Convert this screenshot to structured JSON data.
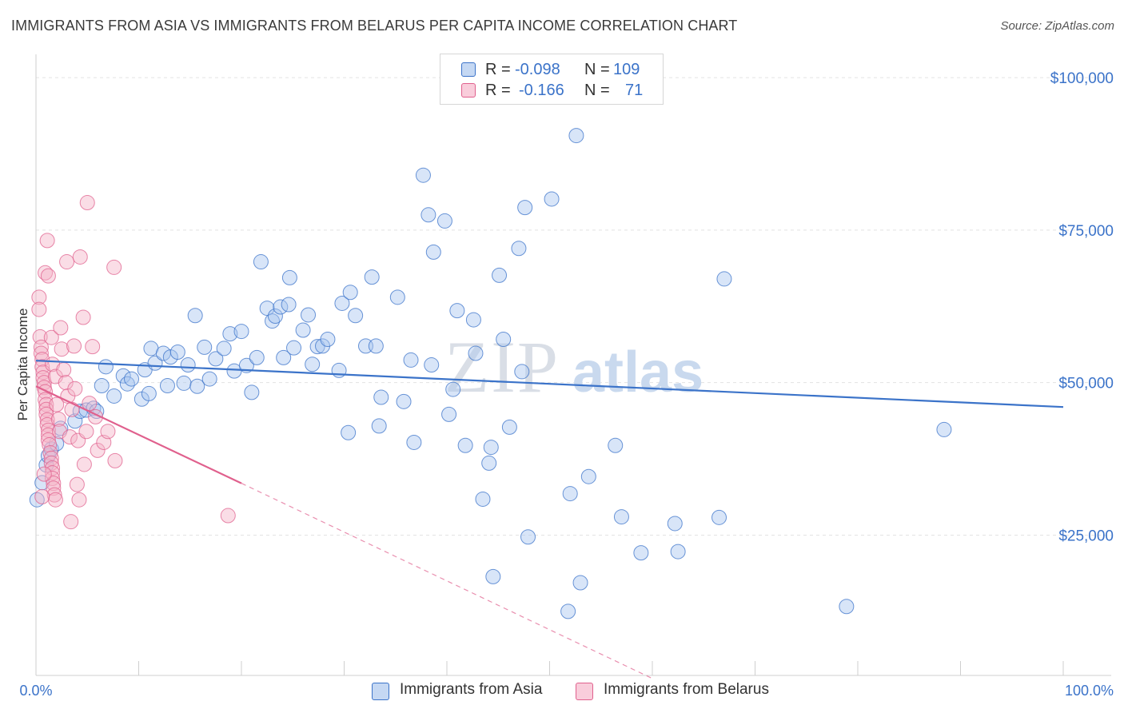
{
  "title": "IMMIGRANTS FROM ASIA VS IMMIGRANTS FROM BELARUS PER CAPITA INCOME CORRELATION CHART",
  "source": "Source: ZipAtlas.com",
  "watermark": {
    "zip": "ZIP",
    "atlas": "atlas"
  },
  "legend": {
    "rows": [
      {
        "r_label": "R =",
        "r_value": "-0.098",
        "n_label": "N =",
        "n_value": "109",
        "color": "#a9c6ef"
      },
      {
        "r_label": "R =",
        "r_value": "-0.166",
        "n_label": "N =",
        "n_value": "71",
        "color": "#f5b3c7"
      }
    ]
  },
  "bottom_legend": [
    "Immigrants from Asia",
    "Immigrants from Belarus"
  ],
  "chart_data": {
    "type": "scatter",
    "title": "IMMIGRANTS FROM ASIA VS IMMIGRANTS FROM BELARUS PER CAPITA INCOME CORRELATION CHART",
    "xlabel": "",
    "ylabel": "Per Capita Income",
    "x_tick_labels": [
      "0.0%",
      "100.0%"
    ],
    "y_tick_labels": [
      "$25,000",
      "$50,000",
      "$75,000",
      "$100,000"
    ],
    "y_ticks": [
      25000,
      50000,
      75000,
      100000
    ],
    "xlim": [
      0,
      100
    ],
    "ylim": [
      2000,
      102500
    ],
    "grid": true,
    "series": [
      {
        "name": "Immigrants from Asia",
        "color": "#3b73c9",
        "fill": "#a9c6ef",
        "R": -0.098,
        "N": 109,
        "trend": {
          "x": [
            0,
            100
          ],
          "y": [
            53600,
            46000
          ],
          "style": "solid"
        },
        "points": [
          [
            0.1,
            30800
          ],
          [
            0.6,
            33600
          ],
          [
            1.0,
            36500
          ],
          [
            1.2,
            38000
          ],
          [
            1.5,
            39100
          ],
          [
            2.0,
            40000
          ],
          [
            2.4,
            42500
          ],
          [
            3.8,
            43700
          ],
          [
            4.3,
            45300
          ],
          [
            4.9,
            45500
          ],
          [
            5.6,
            45800
          ],
          [
            5.9,
            45300
          ],
          [
            6.4,
            49500
          ],
          [
            6.8,
            52600
          ],
          [
            7.6,
            47800
          ],
          [
            8.5,
            51100
          ],
          [
            8.9,
            49800
          ],
          [
            9.3,
            50600
          ],
          [
            10.3,
            47300
          ],
          [
            10.6,
            52100
          ],
          [
            11.0,
            48200
          ],
          [
            11.2,
            55600
          ],
          [
            11.6,
            53200
          ],
          [
            12.4,
            54800
          ],
          [
            12.8,
            49500
          ],
          [
            13.1,
            54200
          ],
          [
            13.8,
            55000
          ],
          [
            14.4,
            49900
          ],
          [
            14.8,
            52900
          ],
          [
            15.5,
            61000
          ],
          [
            15.7,
            49400
          ],
          [
            16.4,
            55800
          ],
          [
            16.9,
            50600
          ],
          [
            17.5,
            53900
          ],
          [
            18.3,
            55600
          ],
          [
            18.9,
            58000
          ],
          [
            19.3,
            51900
          ],
          [
            20.0,
            58400
          ],
          [
            20.5,
            52800
          ],
          [
            21.0,
            48400
          ],
          [
            21.5,
            54100
          ],
          [
            21.9,
            69800
          ],
          [
            22.5,
            62200
          ],
          [
            23.0,
            60100
          ],
          [
            23.3,
            60900
          ],
          [
            23.8,
            62400
          ],
          [
            24.1,
            54100
          ],
          [
            24.6,
            62800
          ],
          [
            24.7,
            67200
          ],
          [
            25.1,
            55700
          ],
          [
            26.0,
            58600
          ],
          [
            26.5,
            61100
          ],
          [
            26.9,
            53000
          ],
          [
            27.4,
            55900
          ],
          [
            27.9,
            56000
          ],
          [
            28.4,
            57100
          ],
          [
            29.5,
            52000
          ],
          [
            29.8,
            63000
          ],
          [
            30.4,
            41800
          ],
          [
            30.6,
            64800
          ],
          [
            31.1,
            61000
          ],
          [
            32.1,
            56000
          ],
          [
            32.7,
            67300
          ],
          [
            33.1,
            56000
          ],
          [
            33.4,
            42900
          ],
          [
            33.6,
            47600
          ],
          [
            35.2,
            64000
          ],
          [
            35.8,
            46900
          ],
          [
            36.5,
            53700
          ],
          [
            36.8,
            40200
          ],
          [
            37.7,
            84000
          ],
          [
            38.2,
            77500
          ],
          [
            38.5,
            52900
          ],
          [
            38.7,
            71400
          ],
          [
            39.8,
            76500
          ],
          [
            40.2,
            44800
          ],
          [
            40.6,
            48900
          ],
          [
            41.0,
            61800
          ],
          [
            41.8,
            39700
          ],
          [
            42.6,
            60300
          ],
          [
            42.8,
            54800
          ],
          [
            43.5,
            30900
          ],
          [
            44.1,
            36800
          ],
          [
            44.3,
            39400
          ],
          [
            45.1,
            67600
          ],
          [
            45.5,
            57100
          ],
          [
            46.1,
            42700
          ],
          [
            47.0,
            72000
          ],
          [
            47.3,
            51800
          ],
          [
            47.6,
            78700
          ],
          [
            47.9,
            24700
          ],
          [
            50.2,
            80100
          ],
          [
            52.0,
            31800
          ],
          [
            52.6,
            90500
          ],
          [
            53.0,
            17200
          ],
          [
            53.8,
            34600
          ],
          [
            56.4,
            39700
          ],
          [
            57.0,
            28000
          ],
          [
            58.9,
            22100
          ],
          [
            62.2,
            26900
          ],
          [
            62.5,
            22300
          ],
          [
            66.5,
            27900
          ],
          [
            67.0,
            67000
          ],
          [
            78.9,
            13300
          ],
          [
            88.4,
            42300
          ],
          [
            51.8,
            12500
          ],
          [
            44.5,
            18200
          ]
        ]
      },
      {
        "name": "Immigrants from Belarus",
        "color": "#e0608d",
        "fill": "#f5b3c7",
        "R": -0.166,
        "N": 71,
        "trend": {
          "x": [
            0,
            20.0
          ],
          "y": [
            49400,
            33500
          ],
          "style": "solid"
        },
        "trend_extension": {
          "x": [
            20.0,
            60.0
          ],
          "y": [
            33500,
            1500
          ],
          "style": "dashed"
        },
        "points": [
          [
            0.3,
            64000
          ],
          [
            0.3,
            62000
          ],
          [
            0.4,
            57500
          ],
          [
            0.5,
            55800
          ],
          [
            0.5,
            54800
          ],
          [
            0.6,
            53800
          ],
          [
            0.6,
            52600
          ],
          [
            0.7,
            51700
          ],
          [
            0.7,
            50800
          ],
          [
            0.8,
            50000
          ],
          [
            0.8,
            49200
          ],
          [
            0.9,
            48500
          ],
          [
            0.9,
            47200
          ],
          [
            1.0,
            46400
          ],
          [
            1.0,
            45600
          ],
          [
            1.0,
            44800
          ],
          [
            1.1,
            43900
          ],
          [
            1.1,
            43100
          ],
          [
            1.2,
            42200
          ],
          [
            1.2,
            41400
          ],
          [
            1.2,
            40600
          ],
          [
            1.3,
            39800
          ],
          [
            1.4,
            38500
          ],
          [
            1.5,
            37600
          ],
          [
            1.5,
            36800
          ],
          [
            1.6,
            36000
          ],
          [
            1.6,
            35200
          ],
          [
            1.6,
            34300
          ],
          [
            1.7,
            33500
          ],
          [
            1.7,
            32700
          ],
          [
            1.8,
            31600
          ],
          [
            1.9,
            30800
          ],
          [
            0.9,
            68000
          ],
          [
            1.1,
            73300
          ],
          [
            1.2,
            67500
          ],
          [
            1.5,
            57400
          ],
          [
            1.6,
            53000
          ],
          [
            1.9,
            51000
          ],
          [
            2.0,
            46400
          ],
          [
            2.2,
            44000
          ],
          [
            2.3,
            42000
          ],
          [
            2.4,
            59000
          ],
          [
            2.5,
            55500
          ],
          [
            2.7,
            52100
          ],
          [
            2.9,
            50000
          ],
          [
            3.0,
            69800
          ],
          [
            3.1,
            47800
          ],
          [
            3.3,
            41100
          ],
          [
            3.4,
            27200
          ],
          [
            3.5,
            45600
          ],
          [
            3.7,
            56000
          ],
          [
            3.8,
            49000
          ],
          [
            4.0,
            33300
          ],
          [
            4.1,
            40500
          ],
          [
            4.2,
            30800
          ],
          [
            4.3,
            70600
          ],
          [
            4.6,
            60700
          ],
          [
            4.7,
            36600
          ],
          [
            4.9,
            42000
          ],
          [
            5.0,
            79500
          ],
          [
            5.2,
            46600
          ],
          [
            5.5,
            55900
          ],
          [
            5.8,
            44400
          ],
          [
            6.0,
            38900
          ],
          [
            6.6,
            40200
          ],
          [
            7.0,
            42000
          ],
          [
            7.6,
            68900
          ],
          [
            7.7,
            37200
          ],
          [
            18.7,
            28200
          ],
          [
            0.6,
            31300
          ],
          [
            0.8,
            35000
          ]
        ]
      }
    ]
  }
}
